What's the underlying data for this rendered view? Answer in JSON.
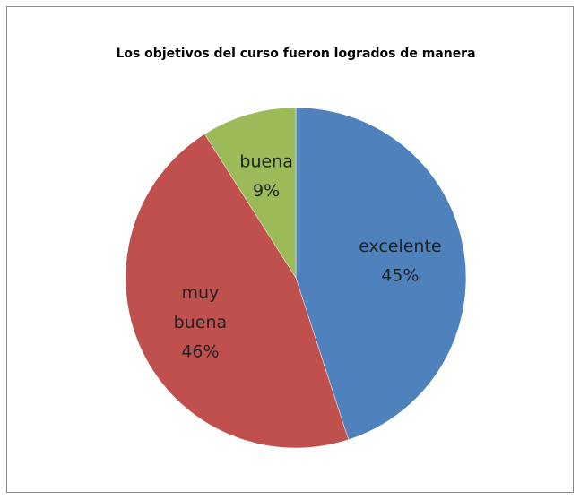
{
  "chart_data": {
    "type": "pie",
    "title": "Los objetivos del curso fueron logrados de manera",
    "categories": [
      "excelente",
      "muy buena",
      "buena"
    ],
    "values": [
      45,
      46,
      9
    ],
    "value_labels": [
      "45%",
      "46%",
      "9%"
    ],
    "colors": [
      "#4f81bd",
      "#c0504d",
      "#9bbb59"
    ]
  }
}
